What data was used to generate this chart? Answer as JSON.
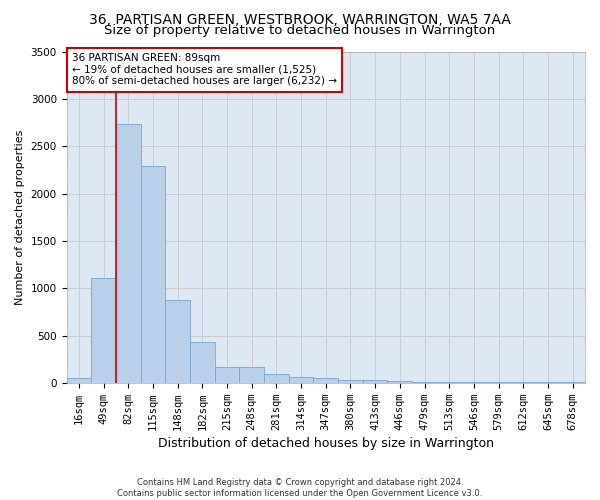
{
  "title": "36, PARTISAN GREEN, WESTBROOK, WARRINGTON, WA5 7AA",
  "subtitle": "Size of property relative to detached houses in Warrington",
  "xlabel": "Distribution of detached houses by size in Warrington",
  "ylabel": "Number of detached properties",
  "footer_line1": "Contains HM Land Registry data © Crown copyright and database right 2024.",
  "footer_line2": "Contains public sector information licensed under the Open Government Licence v3.0.",
  "bar_labels": [
    "16sqm",
    "49sqm",
    "82sqm",
    "115sqm",
    "148sqm",
    "182sqm",
    "215sqm",
    "248sqm",
    "281sqm",
    "314sqm",
    "347sqm",
    "380sqm",
    "413sqm",
    "446sqm",
    "479sqm",
    "513sqm",
    "546sqm",
    "579sqm",
    "612sqm",
    "645sqm",
    "678sqm"
  ],
  "bar_values": [
    55,
    1105,
    2730,
    2290,
    875,
    430,
    170,
    165,
    90,
    60,
    50,
    35,
    25,
    20,
    5,
    5,
    5,
    5,
    5,
    5,
    5
  ],
  "bar_color": "#b8d0ea",
  "bar_edgecolor": "#6699cc",
  "annotation_text": "36 PARTISAN GREEN: 89sqm\n← 19% of detached houses are smaller (1,525)\n80% of semi-detached houses are larger (6,232) →",
  "annotation_box_color": "#ffffff",
  "annotation_box_edgecolor": "#cc0000",
  "marker_bar_index": 2,
  "ylim": [
    0,
    3500
  ],
  "yticks": [
    0,
    500,
    1000,
    1500,
    2000,
    2500,
    3000,
    3500
  ],
  "grid_color": "#cccccc",
  "bg_color": "#dde8f5",
  "title_fontsize": 10,
  "subtitle_fontsize": 9.5,
  "xlabel_fontsize": 9,
  "ylabel_fontsize": 8,
  "tick_fontsize": 7.5,
  "annotation_fontsize": 7.5,
  "footer_fontsize": 6
}
